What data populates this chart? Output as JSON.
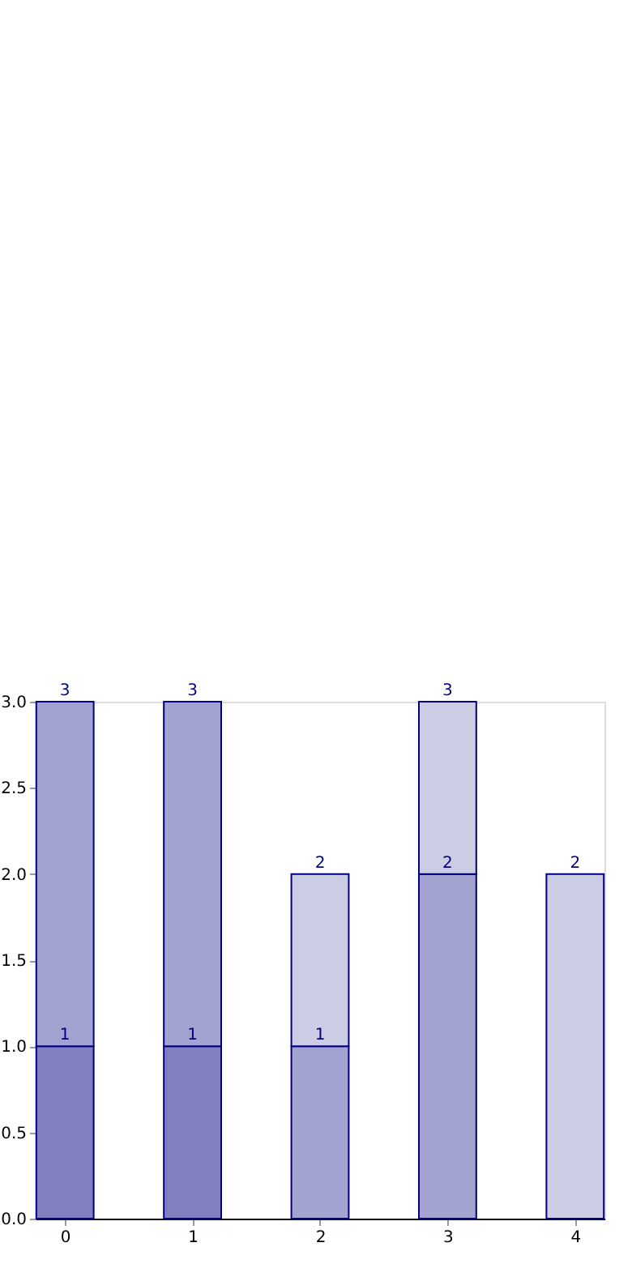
{
  "chart_data": {
    "type": "bar",
    "stacked": true,
    "x": [
      0,
      1,
      2,
      3,
      4
    ],
    "series": [
      {
        "color": "#8080c0",
        "values": [
          1,
          1,
          null,
          null,
          null
        ]
      },
      {
        "color": "#a3a3d1",
        "values": [
          2,
          2,
          1,
          2,
          null
        ]
      },
      {
        "color": "#cccce5",
        "values": [
          null,
          null,
          1,
          1,
          2
        ]
      }
    ],
    "annotations": [
      {
        "text": "1",
        "x": 0,
        "y": 1
      },
      {
        "text": "3",
        "x": 0,
        "y": 3
      },
      {
        "text": "1",
        "x": 1,
        "y": 1
      },
      {
        "text": "3",
        "x": 1,
        "y": 3
      },
      {
        "text": "1",
        "x": 2,
        "y": 1
      },
      {
        "text": "2",
        "x": 2,
        "y": 2
      },
      {
        "text": "2",
        "x": 3,
        "y": 2
      },
      {
        "text": "3",
        "x": 3,
        "y": 3
      },
      {
        "text": "2",
        "x": 4,
        "y": 2
      }
    ],
    "xlim": [
      -0.23,
      4.23
    ],
    "xticks": [
      0,
      1,
      2,
      3,
      4
    ],
    "ylim": [
      0,
      3
    ],
    "yticks": [
      {
        "value": 0,
        "label": "0.0"
      },
      {
        "value": 0.5,
        "label": "0.5"
      },
      {
        "value": 1,
        "label": "1.0"
      },
      {
        "value": 1.5,
        "label": "1.5"
      },
      {
        "value": 2,
        "label": "2.0"
      },
      {
        "value": 2.5,
        "label": "2.5"
      },
      {
        "value": 3,
        "label": "3.0"
      }
    ],
    "grid": false,
    "legend": false
  }
}
